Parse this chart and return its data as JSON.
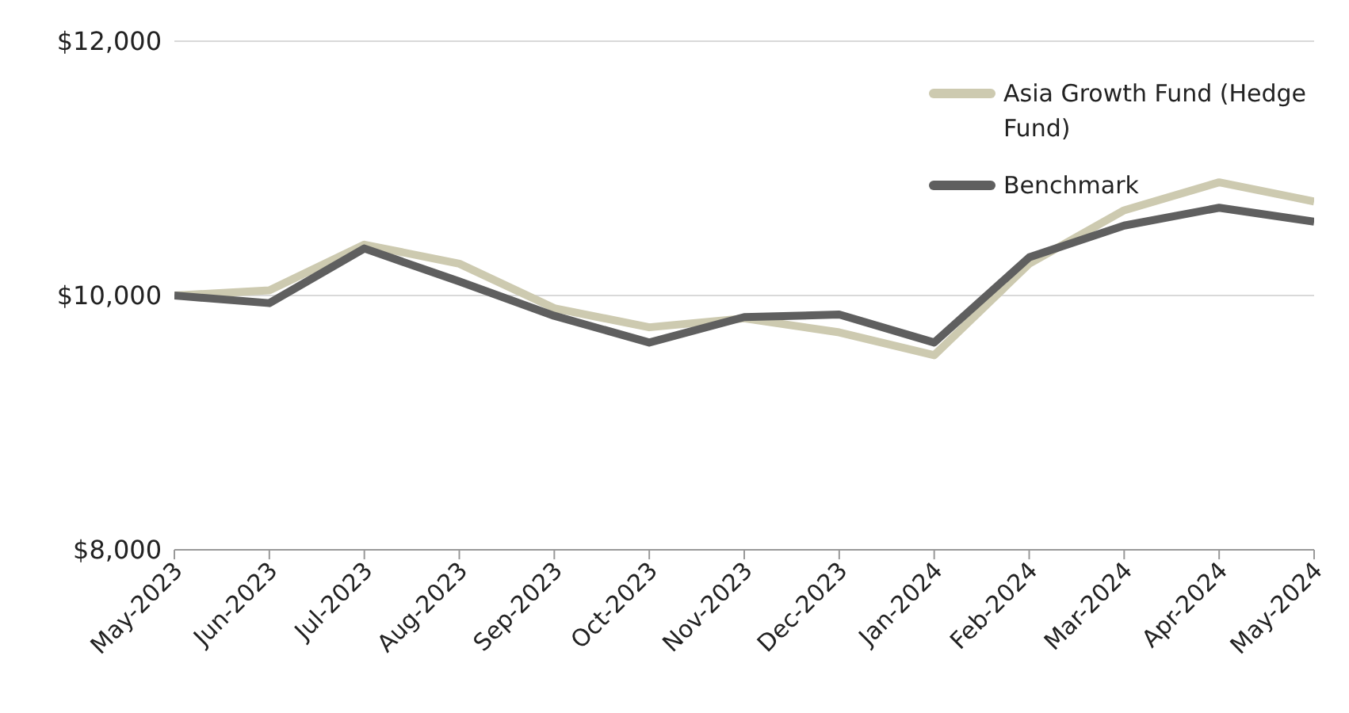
{
  "chart_data": {
    "type": "line",
    "categories": [
      "May-2023",
      "Jun-2023",
      "Jul-2023",
      "Aug-2023",
      "Sep-2023",
      "Oct-2023",
      "Nov-2023",
      "Dec-2023",
      "Jan-2024",
      "Feb-2024",
      "Mar-2024",
      "Apr-2024",
      "May-2024"
    ],
    "series": [
      {
        "name": "Asia Growth Fund (Hedge Fund)",
        "color": "#cdcab0",
        "values": [
          10000,
          10040,
          10400,
          10250,
          9900,
          9750,
          9820,
          9710,
          9530,
          10250,
          10670,
          10890,
          10740
        ]
      },
      {
        "name": "Benchmark",
        "color": "#5f5f5f",
        "values": [
          10000,
          9940,
          10370,
          10110,
          9840,
          9630,
          9830,
          9850,
          9630,
          10300,
          10550,
          10690,
          10580
        ]
      }
    ],
    "ylim": [
      8000,
      12000
    ],
    "yticks": [
      {
        "value": 8000,
        "label": "$8,000"
      },
      {
        "value": 10000,
        "label": "$10,000"
      },
      {
        "value": 12000,
        "label": "$12,000"
      }
    ],
    "grid": "y",
    "legend": "top right",
    "marker": "none",
    "line_style": "solid"
  }
}
